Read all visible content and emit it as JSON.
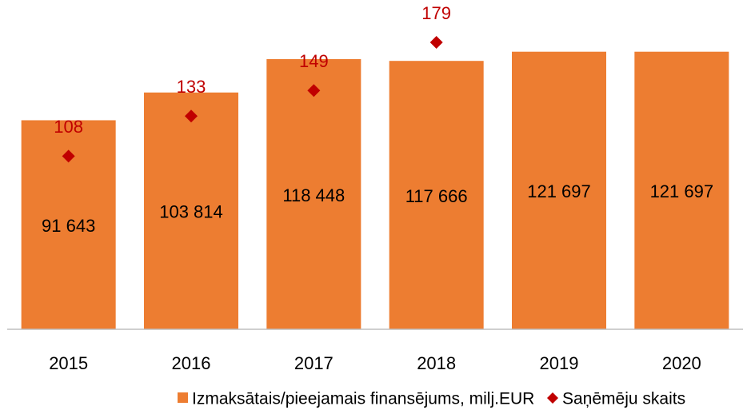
{
  "chart_data": {
    "type": "bar",
    "categories": [
      "2015",
      "2016",
      "2017",
      "2018",
      "2019",
      "2020"
    ],
    "series": [
      {
        "name": "Izmaksātais/pieejamais finansējums, milj.EUR",
        "color": "#ed7d31",
        "type": "bar",
        "values": [
          91643,
          103814,
          118448,
          117666,
          121697,
          121697
        ],
        "value_labels": [
          "91 643",
          "103 814",
          "118 448",
          "117 666",
          "121 697",
          "121 697"
        ]
      },
      {
        "name": "Saņēmēju skaits",
        "color": "#c00000",
        "type": "scatter",
        "axis": "y2",
        "values": [
          108,
          133,
          149,
          179,
          null,
          null
        ]
      }
    ],
    "ylim": [
      0,
      130000
    ],
    "y2lim": [
      0,
      185
    ],
    "legend": "bottom"
  }
}
